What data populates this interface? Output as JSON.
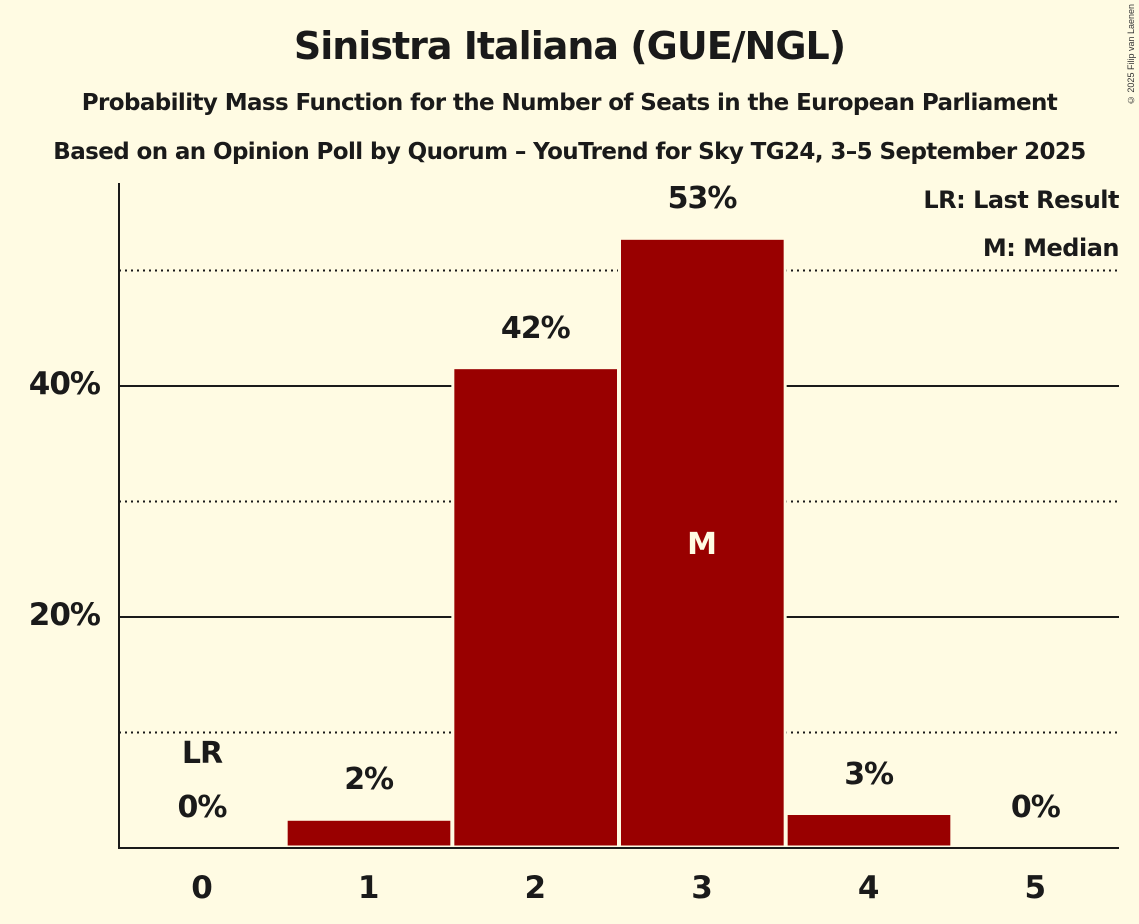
{
  "title": "Sinistra Italiana (GUE/NGL)",
  "subtitle1": "Probability Mass Function for the Number of Seats in the European Parliament",
  "subtitle2": "Based on an Opinion Poll by Quorum – YouTrend for Sky TG24, 3–5 September 2025",
  "copyright": "© 2025 Filip van Laenen",
  "legend": {
    "lr": "LR: Last Result",
    "m": "M: Median"
  },
  "colors": {
    "background": "#fffbe3",
    "bar": "#990000",
    "text": "#1a1a1a"
  },
  "y_ticks": [
    "20%",
    "40%"
  ],
  "bars": [
    {
      "category": "0",
      "label": "0%",
      "marker": "LR"
    },
    {
      "category": "1",
      "label": "2%",
      "marker": ""
    },
    {
      "category": "2",
      "label": "42%",
      "marker": ""
    },
    {
      "category": "3",
      "label": "53%",
      "marker": "M"
    },
    {
      "category": "4",
      "label": "3%",
      "marker": ""
    },
    {
      "category": "5",
      "label": "0%",
      "marker": ""
    }
  ],
  "chart_data": {
    "type": "bar",
    "title": "Sinistra Italiana (GUE/NGL)",
    "subtitle": "Probability Mass Function for the Number of Seats in the European Parliament — Based on an Opinion Poll by Quorum – YouTrend for Sky TG24, 3–5 September 2025",
    "xlabel": "",
    "ylabel": "",
    "categories": [
      "0",
      "1",
      "2",
      "3",
      "4",
      "5"
    ],
    "values": [
      0,
      2.4,
      41.5,
      52.7,
      2.9,
      0
    ],
    "data_labels": [
      "0%",
      "2%",
      "42%",
      "53%",
      "3%",
      "0%"
    ],
    "ylim": [
      0,
      57
    ],
    "y_ticks": [
      20,
      40
    ],
    "y_tick_labels": [
      "20%",
      "40%"
    ],
    "minor_gridlines": [
      10,
      30,
      50
    ],
    "grid": true,
    "annotations": [
      {
        "category": "0",
        "text": "LR",
        "meaning": "Last Result"
      },
      {
        "category": "3",
        "text": "M",
        "meaning": "Median"
      }
    ],
    "legend": [
      "LR: Last Result",
      "M: Median"
    ],
    "legend_position": "top-right",
    "bar_color": "#990000"
  }
}
